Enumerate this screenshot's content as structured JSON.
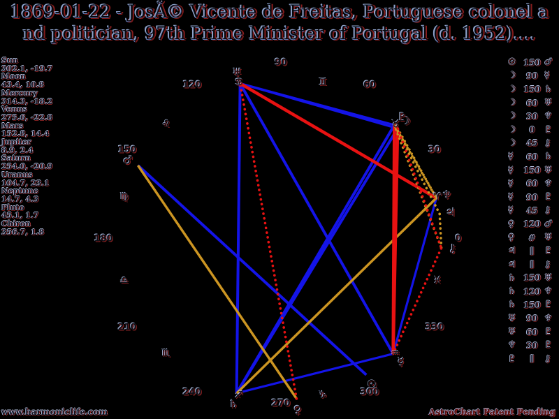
{
  "title": {
    "line1": "1869-01-22 - JosÃ© Vicente de Freitas, Portuguese colonel a",
    "line2": "nd politician, 97th Prime Minister of Portugal (d. 1952)...."
  },
  "planets": [
    {
      "name": "Sun",
      "glyph": "☉",
      "lon": "302.1",
      "dec": "-19.7"
    },
    {
      "name": "Moon",
      "glyph": "☽",
      "lon": "43.4",
      "dec": "10.8"
    },
    {
      "name": "Mercury",
      "glyph": "☿",
      "lon": "314.3",
      "dec": "-18.2"
    },
    {
      "name": "Venus",
      "glyph": "♀",
      "lon": "275.6",
      "dec": "-22.8"
    },
    {
      "name": "Mars",
      "glyph": "♂",
      "lon": "152.8",
      "dec": "14.4"
    },
    {
      "name": "Jupiter",
      "glyph": "♃",
      "lon": "8.9",
      "dec": "2.4"
    },
    {
      "name": "Saturn",
      "glyph": "♄",
      "lon": "254.0",
      "dec": "-20.9"
    },
    {
      "name": "Uranus",
      "glyph": "♅",
      "lon": "104.7",
      "dec": "23.1"
    },
    {
      "name": "Neptune",
      "glyph": "♆",
      "lon": "14.7",
      "dec": "4.3"
    },
    {
      "name": "Pluto",
      "glyph": "♇",
      "lon": "45.1",
      "dec": "1.7"
    },
    {
      "name": "Chiron",
      "glyph": "⚷",
      "lon": "356.7",
      "dec": "1.8"
    }
  ],
  "aspects": [
    {
      "a": "Sun",
      "rel": "150",
      "b": "Mars"
    },
    {
      "a": "Moon",
      "rel": "90",
      "b": "Mercury"
    },
    {
      "a": "Moon",
      "rel": "150",
      "b": "Saturn"
    },
    {
      "a": "Moon",
      "rel": "60",
      "b": "Uranus"
    },
    {
      "a": "Moon",
      "rel": "30",
      "b": "Neptune"
    },
    {
      "a": "Moon",
      "rel": "0",
      "b": "Pluto"
    },
    {
      "a": "Moon",
      "rel": "45",
      "b": "Chiron"
    },
    {
      "a": "Mercury",
      "rel": "60",
      "b": "Saturn"
    },
    {
      "a": "Mercury",
      "rel": "150",
      "b": "Uranus"
    },
    {
      "a": "Mercury",
      "rel": "60",
      "b": "Neptune"
    },
    {
      "a": "Mercury",
      "rel": "90",
      "b": "Pluto"
    },
    {
      "a": "Mercury",
      "rel": "45",
      "b": "Chiron"
    },
    {
      "a": "Venus",
      "rel": "120",
      "b": "Mars"
    },
    {
      "a": "Venus",
      "rel": "#",
      "b": "Uranus"
    },
    {
      "a": "Jupiter",
      "rel": "∥",
      "b": "Pluto"
    },
    {
      "a": "Jupiter",
      "rel": "∥",
      "b": "Chiron"
    },
    {
      "a": "Saturn",
      "rel": "150",
      "b": "Uranus"
    },
    {
      "a": "Saturn",
      "rel": "120",
      "b": "Neptune"
    },
    {
      "a": "Saturn",
      "rel": "150",
      "b": "Pluto"
    },
    {
      "a": "Uranus",
      "rel": "90",
      "b": "Neptune"
    },
    {
      "a": "Uranus",
      "rel": "60",
      "b": "Pluto"
    },
    {
      "a": "Neptune",
      "rel": "30",
      "b": "Pluto"
    },
    {
      "a": "Pluto",
      "rel": "∥",
      "b": "Chiron"
    }
  ],
  "signs": [
    {
      "name": "Aries",
      "glyph": "♈",
      "mid_lon": 15
    },
    {
      "name": "Taurus",
      "glyph": "♉",
      "mid_lon": 45
    },
    {
      "name": "Gemini",
      "glyph": "♊",
      "mid_lon": 75
    },
    {
      "name": "Cancer",
      "glyph": "♋",
      "mid_lon": 105
    },
    {
      "name": "Leo",
      "glyph": "♌",
      "mid_lon": 135
    },
    {
      "name": "Virgo",
      "glyph": "♍",
      "mid_lon": 165
    },
    {
      "name": "Libra",
      "glyph": "♎",
      "mid_lon": 195
    },
    {
      "name": "Scorpio",
      "glyph": "♏",
      "mid_lon": 225
    },
    {
      "name": "Sagittarius",
      "glyph": "♐",
      "mid_lon": 255
    },
    {
      "name": "Capricorn",
      "glyph": "♑",
      "mid_lon": 285
    },
    {
      "name": "Aquarius",
      "glyph": "♒",
      "mid_lon": 315
    },
    {
      "name": "Pisces",
      "glyph": "♓",
      "mid_lon": 345
    }
  ],
  "degree_labels": [
    "0",
    "30",
    "60",
    "90",
    "120",
    "150",
    "180",
    "210",
    "240",
    "270",
    "300",
    "330"
  ],
  "aspect_styles": {
    "150": {
      "color_key": "aspect_blue",
      "width": 4,
      "dotted": false
    },
    "60": {
      "color_key": "aspect_blue",
      "width": 3.2,
      "dotted": false
    },
    "90": {
      "color_key": "aspect_red",
      "width": 4.5,
      "dotted": false
    },
    "120": {
      "color_key": "aspect_gold",
      "width": 3.5,
      "dotted": false
    },
    "0": {
      "color_key": "aspect_red",
      "width": 4,
      "dotted": false
    },
    "45": {
      "color_key": "aspect_red",
      "width": 3.6,
      "dotted": true
    },
    "30": {
      "color_key": "aspect_gold",
      "width": 3.6,
      "dotted": true
    },
    "#": {
      "color_key": "aspect_red",
      "width": 3.6,
      "dotted": true
    },
    "∥": {
      "color_key": "aspect_gold",
      "width": 3.6,
      "dotted": true
    }
  },
  "colors": {
    "background": "#000000",
    "aspect_blue": "#1414e8",
    "aspect_red": "#e81212",
    "aspect_gold": "#cc9522",
    "glyph_core": "#0d0f16",
    "fringe_blue": "#a9b8dc",
    "fringe_red": "#8a2020"
  },
  "footer": {
    "left": "www.harmoniclife.com",
    "right": "AstroChart Patent Pending"
  }
}
